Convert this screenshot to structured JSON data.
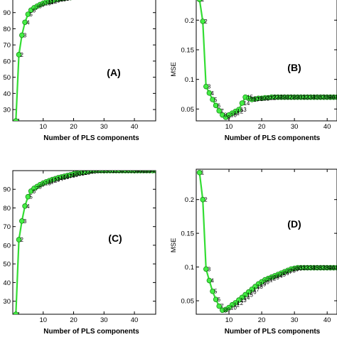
{
  "chart_data": [
    {
      "type": "line",
      "panel_label": "(A)",
      "xlabel": "Number of PLS components",
      "ylabel": "",
      "xlim": [
        0,
        47
      ],
      "ylim": [
        23,
        100
      ],
      "xticks": [
        10,
        20,
        30,
        40
      ],
      "yticks": [
        30,
        40,
        50,
        60,
        70,
        80,
        90
      ],
      "color": "#33dd33",
      "marker_color": "#44ee44",
      "series": [
        {
          "x": [
            1,
            2,
            3,
            4,
            5,
            6,
            7,
            8,
            9,
            10,
            11,
            12,
            13,
            14,
            15,
            16,
            17,
            18,
            19,
            20,
            21,
            22,
            23,
            24,
            25,
            26,
            27,
            28,
            29,
            30,
            31,
            32,
            33,
            34,
            35,
            36,
            37,
            38,
            39,
            40,
            41,
            42,
            43,
            44,
            45,
            46,
            47
          ],
          "y": [
            23,
            64,
            76,
            84,
            89,
            91.5,
            93,
            94,
            95,
            95.8,
            96.5,
            97,
            97.5,
            98,
            98.3,
            98.6,
            98.9,
            99.1,
            99.3,
            99.5,
            99.6,
            99.7,
            99.8,
            99.9,
            100,
            100,
            100,
            100,
            100,
            100,
            100,
            100,
            100,
            100,
            100,
            100,
            100,
            100,
            100,
            100,
            100,
            100,
            100,
            100,
            100,
            100,
            100
          ],
          "point_labels": [
            "1",
            "2",
            "3",
            "4",
            "5",
            "6",
            "7",
            "8",
            "9",
            "10",
            "11",
            "12",
            "13",
            "14",
            "15",
            "16",
            "17",
            "18",
            "19",
            "20",
            "21",
            "22",
            "23",
            "24",
            "25",
            "26",
            "27",
            "28",
            "29",
            "30",
            "31",
            "32",
            "33",
            "34",
            "35",
            "36",
            "37",
            "38",
            "39",
            "40",
            "41",
            "42",
            "43",
            "44",
            "45",
            "46",
            "47"
          ]
        }
      ]
    },
    {
      "type": "line",
      "panel_label": "(B)",
      "xlabel": "Number of PLS components",
      "ylabel": "MSE",
      "xlim": [
        0,
        43
      ],
      "ylim": [
        0.03,
        0.24
      ],
      "xticks": [
        10,
        20,
        30,
        40
      ],
      "yticks": [
        0.05,
        0.1,
        0.15,
        0.2
      ],
      "color": "#33dd33",
      "marker_color": "#44ee44",
      "series": [
        {
          "x": [
            1,
            2,
            3,
            4,
            5,
            6,
            7,
            8,
            9,
            10,
            11,
            12,
            13,
            14,
            15,
            16,
            17,
            18,
            19,
            20,
            21,
            22,
            23,
            24,
            25,
            26,
            27,
            28,
            29,
            30,
            31,
            32,
            33,
            34,
            35,
            36,
            37,
            38,
            39,
            40,
            41,
            42,
            43
          ],
          "y": [
            0.235,
            0.198,
            0.088,
            0.077,
            0.066,
            0.056,
            0.047,
            0.04,
            0.036,
            0.04,
            0.043,
            0.046,
            0.049,
            0.06,
            0.07,
            0.068,
            0.066,
            0.067,
            0.068,
            0.068,
            0.069,
            0.069,
            0.07,
            0.07,
            0.07,
            0.07,
            0.07,
            0.07,
            0.07,
            0.07,
            0.07,
            0.07,
            0.07,
            0.07,
            0.07,
            0.07,
            0.07,
            0.07,
            0.07,
            0.07,
            0.07,
            0.07,
            0.07
          ],
          "point_labels": [
            "1",
            "2",
            "3",
            "4",
            "5",
            "6",
            "7",
            "8",
            "9",
            "10",
            "11",
            "12",
            "13",
            "14",
            "15",
            "16",
            "17",
            "18",
            "19",
            "20",
            "21",
            "22",
            "23",
            "24",
            "25",
            "26",
            "27",
            "28",
            "29",
            "30",
            "31",
            "32",
            "33",
            "34",
            "35",
            "36",
            "37",
            "38",
            "39",
            "40",
            "41",
            "42",
            "43"
          ]
        }
      ]
    },
    {
      "type": "line",
      "panel_label": "(C)",
      "xlabel": "Number of PLS components",
      "ylabel": "",
      "xlim": [
        0,
        47
      ],
      "ylim": [
        23,
        100
      ],
      "xticks": [
        10,
        20,
        30,
        40
      ],
      "yticks": [
        30,
        40,
        50,
        60,
        70,
        80,
        90
      ],
      "color": "#33dd33",
      "marker_color": "#44ee44",
      "series": [
        {
          "x": [
            1,
            2,
            3,
            4,
            5,
            6,
            7,
            8,
            9,
            10,
            11,
            12,
            13,
            14,
            15,
            16,
            17,
            18,
            19,
            20,
            21,
            22,
            23,
            24,
            25,
            26,
            27,
            28,
            29,
            30,
            31,
            32,
            33,
            34,
            35,
            36,
            37,
            38,
            39,
            40,
            41,
            42,
            43,
            44,
            45,
            46,
            47
          ],
          "y": [
            23,
            63,
            73,
            81,
            86,
            89,
            90.5,
            91.5,
            92.5,
            93.3,
            94,
            94.6,
            95.2,
            95.7,
            96.2,
            96.6,
            97,
            97.4,
            97.8,
            98.2,
            98.5,
            98.8,
            99.1,
            99.4,
            99.6,
            99.8,
            100,
            100,
            100,
            100,
            100,
            100,
            100,
            100,
            100,
            100,
            100,
            100,
            100,
            100,
            100,
            100,
            100,
            100,
            100,
            100,
            100
          ],
          "point_labels": [
            "1",
            "2",
            "3",
            "4",
            "5",
            "6",
            "7",
            "8",
            "9",
            "10",
            "11",
            "12",
            "13",
            "14",
            "15",
            "16",
            "17",
            "18",
            "19",
            "20",
            "21",
            "22",
            "23",
            "24",
            "25",
            "26",
            "27",
            "28",
            "29",
            "30",
            "31",
            "32",
            "33",
            "34",
            "35",
            "36",
            "37",
            "38",
            "39",
            "40",
            "41",
            "42",
            "43",
            "44",
            "45",
            "46",
            "47"
          ]
        }
      ]
    },
    {
      "type": "line",
      "panel_label": "(D)",
      "xlabel": "Number of PLS components",
      "ylabel": "MSE",
      "xlim": [
        0,
        43
      ],
      "ylim": [
        0.03,
        0.245
      ],
      "xticks": [
        10,
        20,
        30,
        40
      ],
      "yticks": [
        0.05,
        0.1,
        0.15,
        0.2
      ],
      "color": "#33dd33",
      "marker_color": "#44ee44",
      "series": [
        {
          "x": [
            1,
            2,
            3,
            4,
            5,
            6,
            7,
            8,
            9,
            10,
            11,
            12,
            13,
            14,
            15,
            16,
            17,
            18,
            19,
            20,
            21,
            22,
            23,
            24,
            25,
            26,
            27,
            28,
            29,
            30,
            31,
            32,
            33,
            34,
            35,
            36,
            37,
            38,
            39,
            40,
            41,
            42,
            43
          ],
          "y": [
            0.24,
            0.2,
            0.097,
            0.08,
            0.064,
            0.052,
            0.042,
            0.036,
            0.037,
            0.04,
            0.044,
            0.047,
            0.051,
            0.055,
            0.059,
            0.063,
            0.067,
            0.071,
            0.075,
            0.078,
            0.081,
            0.083,
            0.085,
            0.087,
            0.089,
            0.091,
            0.093,
            0.095,
            0.097,
            0.098,
            0.099,
            0.099,
            0.099,
            0.099,
            0.099,
            0.099,
            0.099,
            0.099,
            0.099,
            0.099,
            0.099,
            0.099,
            0.099
          ],
          "point_labels": [
            "1",
            "2",
            "3",
            "4",
            "5",
            "6",
            "7",
            "8",
            "9",
            "10",
            "11",
            "12",
            "13",
            "14",
            "15",
            "16",
            "17",
            "18",
            "19",
            "20",
            "21",
            "22",
            "23",
            "24",
            "25",
            "26",
            "27",
            "28",
            "29",
            "30",
            "31",
            "32",
            "33",
            "34",
            "35",
            "36",
            "37",
            "38",
            "39",
            "40",
            "41",
            "42",
            "43"
          ]
        }
      ]
    }
  ]
}
